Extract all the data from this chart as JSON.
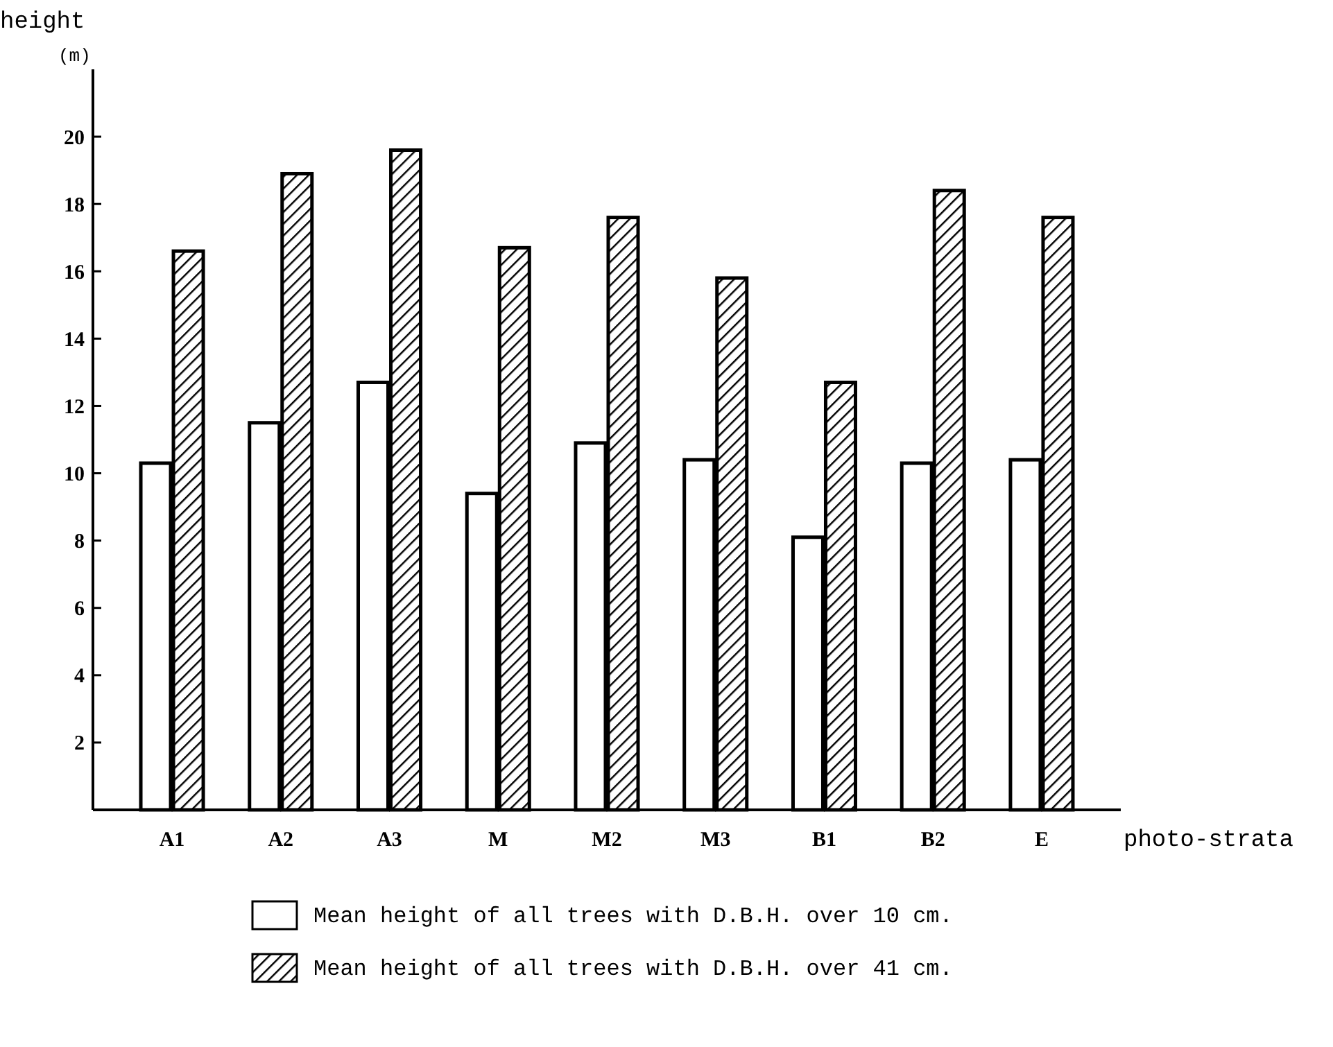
{
  "chart_data": {
    "type": "bar",
    "ylabel": "height\n(m)",
    "xlabel": "photo-strata",
    "categories": [
      "A1",
      "A2",
      "A3",
      "M",
      "M2",
      "M3",
      "B1",
      "B2",
      "E"
    ],
    "series": [
      {
        "name": "Mean height of all trees with D.B.H. over 10 cm.",
        "color": "#ffffff",
        "values": [
          10.3,
          11.5,
          12.7,
          9.4,
          10.9,
          10.4,
          8.1,
          10.3,
          10.4
        ]
      },
      {
        "name": "Mean height of all trees with D.B.H. over 41 cm.",
        "color": "#000000",
        "values": [
          16.6,
          18.9,
          19.6,
          16.7,
          17.6,
          15.8,
          12.7,
          18.4,
          17.6
        ]
      }
    ],
    "ylim": [
      0,
      22
    ],
    "yticks": [
      2,
      4,
      6,
      8,
      10,
      12,
      14,
      16,
      18,
      20
    ],
    "grid": false,
    "legend": "bottom"
  }
}
